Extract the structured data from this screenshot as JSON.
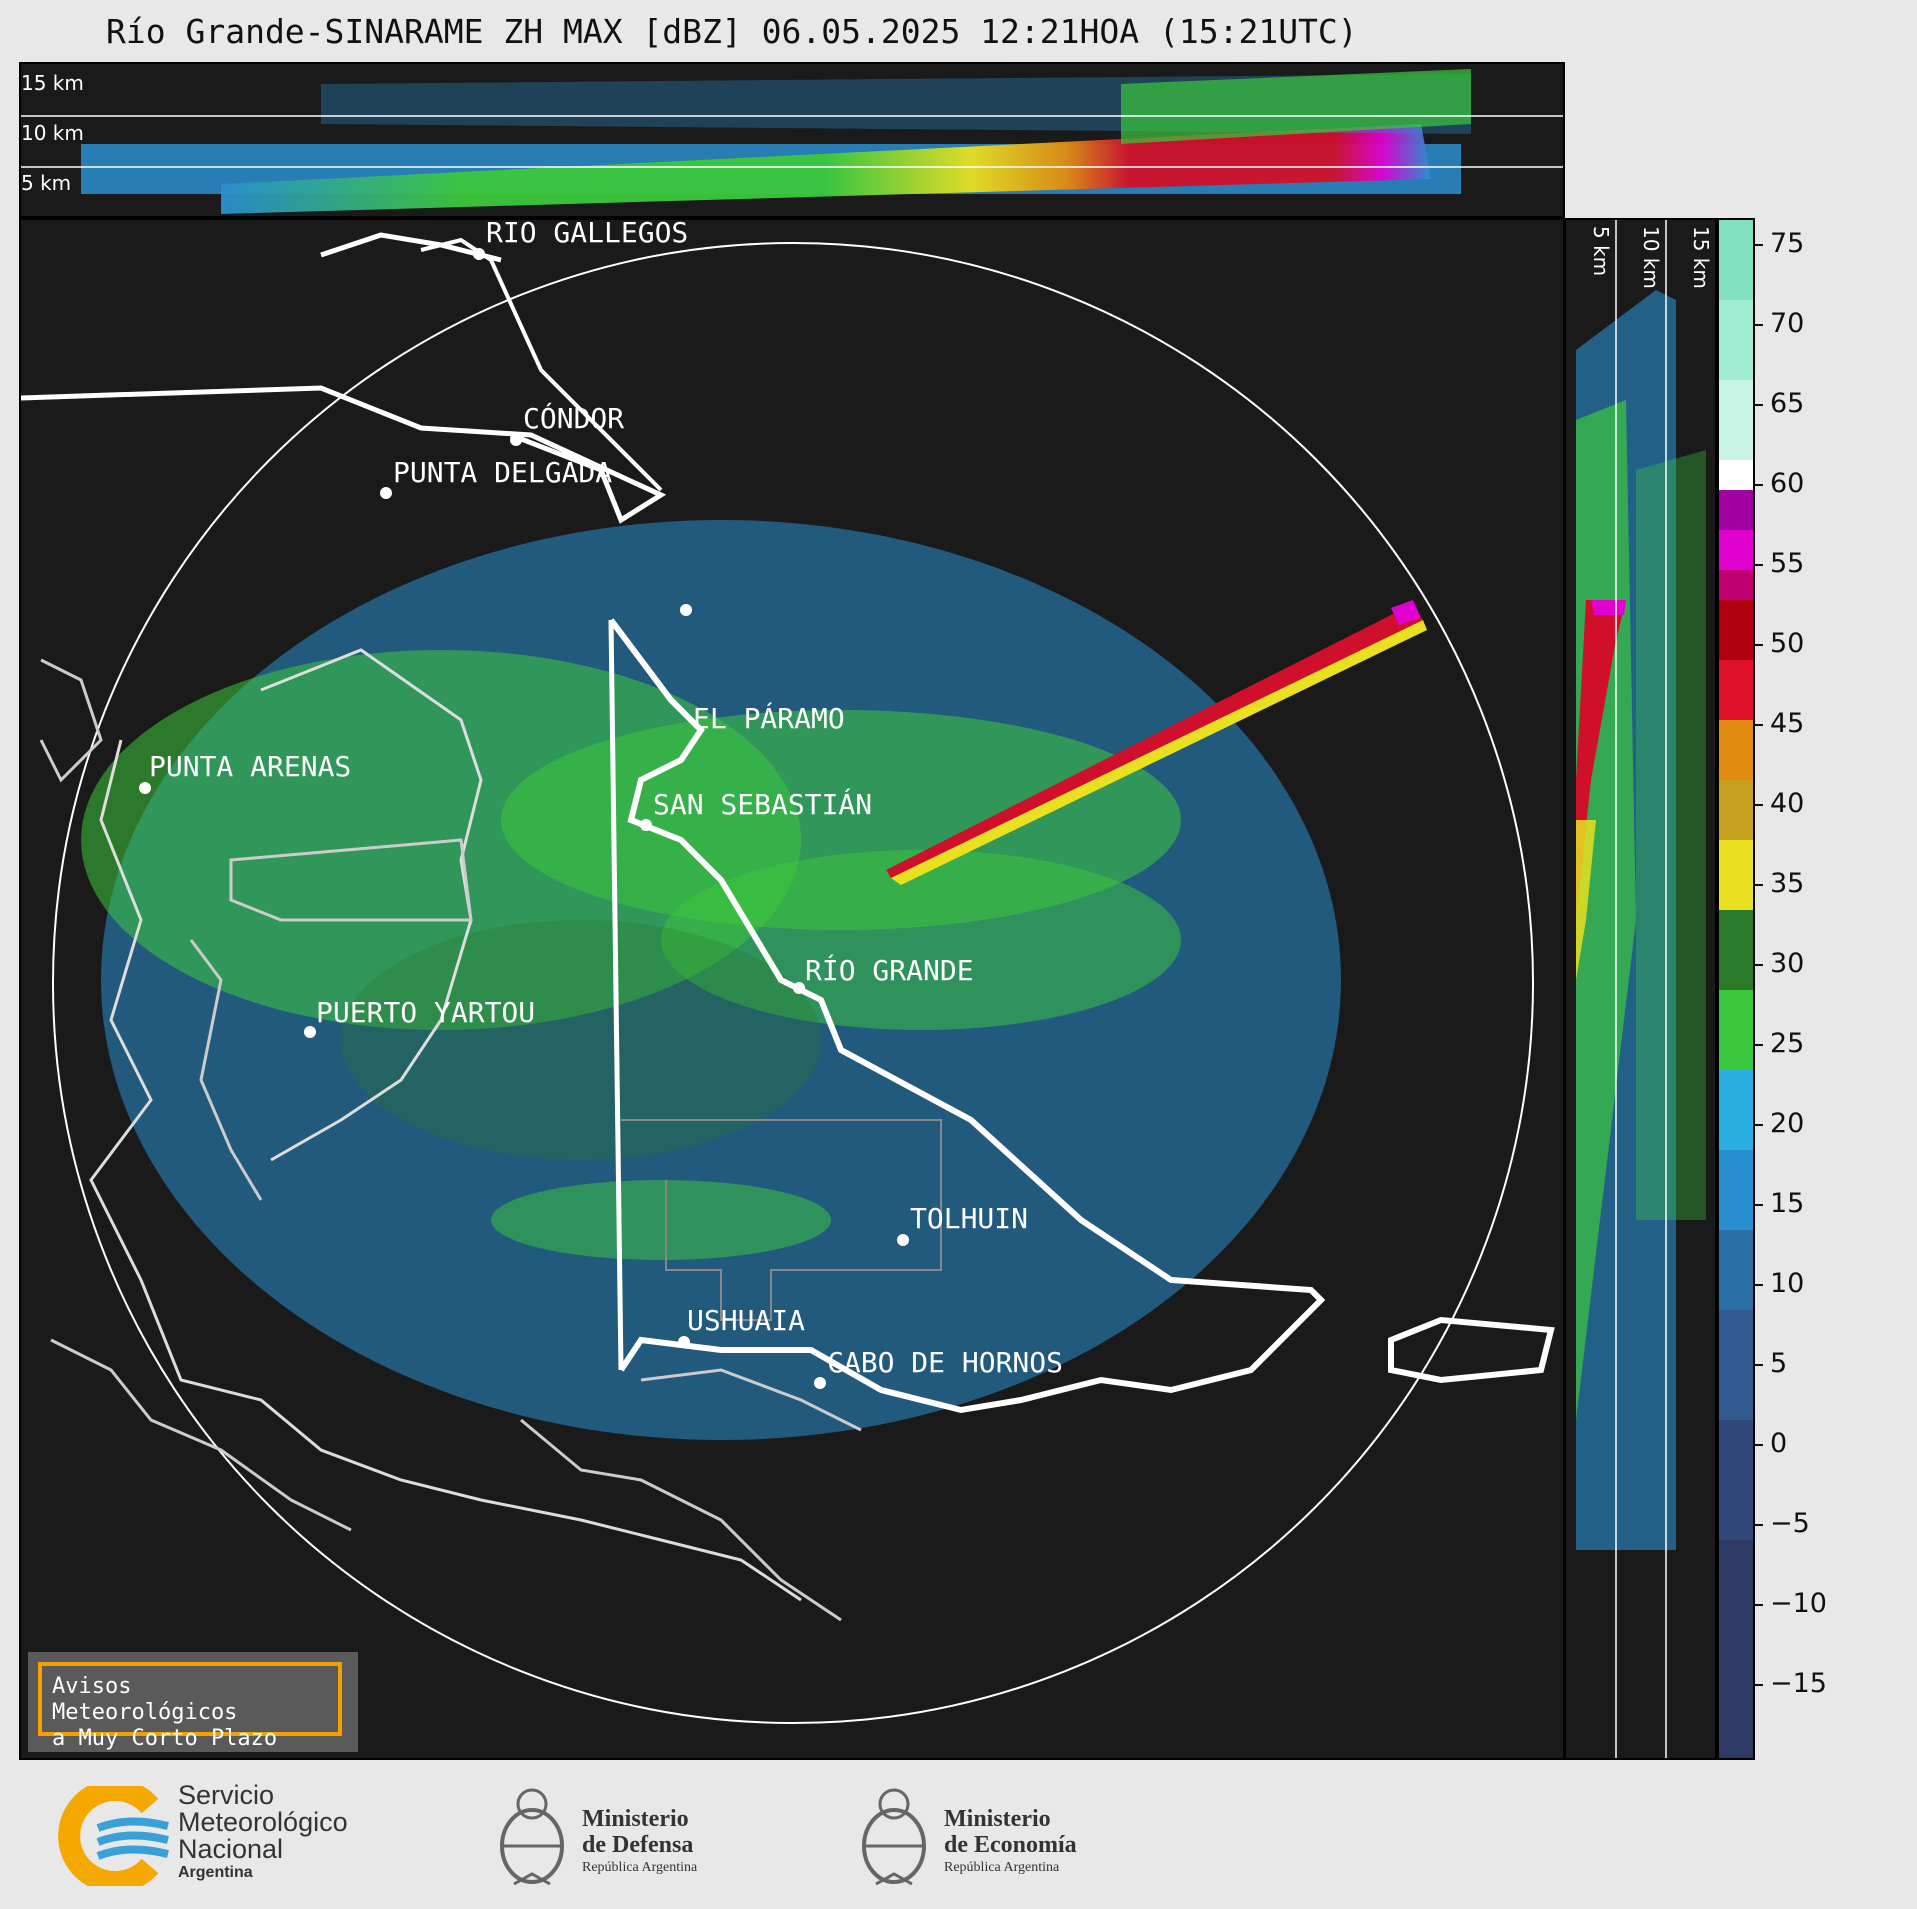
{
  "title": "Río Grande-SINARAME ZH MAX [dBZ] 06.05.2025 12:21HOA (15:21UTC)",
  "top_panel": {
    "km_labels": [
      "15 km",
      "10 km",
      "5 km"
    ]
  },
  "side_panel": {
    "km_labels": [
      "5 km",
      "10 km",
      "15 km"
    ]
  },
  "places": [
    {
      "name": "RÍO GALLEGOS"
    },
    {
      "name": "CÓNDOR"
    },
    {
      "name": "PUNTA DELGADA"
    },
    {
      "name": "EL PÁRAMO"
    },
    {
      "name": "PUNTA ARENAS"
    },
    {
      "name": "SAN SEBASTIÁN"
    },
    {
      "name": "RÍO GRANDE"
    },
    {
      "name": "PUERTO YARTOU"
    },
    {
      "name": "TOLHUIN"
    },
    {
      "name": "USHUAIA"
    },
    {
      "name": "CABO DE HORNOS"
    }
  ],
  "colorbar": {
    "unit": "dBZ",
    "ticks": [
      "75",
      "70",
      "65",
      "60",
      "55",
      "50",
      "45",
      "40",
      "35",
      "30",
      "25",
      "20",
      "15",
      "10",
      "5",
      "0",
      "−5",
      "−10",
      "−15"
    ],
    "colors": {
      "blue": "#2a8fd0",
      "green": "#3cc83c",
      "dark_green": "#2a7a2a",
      "yellow": "#e8e020",
      "orange": "#e08a10",
      "red": "#d0102a",
      "magenta": "#e000d0",
      "aqua": "#80e0c0"
    }
  },
  "aviso": {
    "line1": "Avisos Meteorológicos",
    "line2": "a Muy Corto Plazo"
  },
  "logos": {
    "smn": {
      "line1": "Servicio",
      "line2": "Meteorológico",
      "line3": "Nacional",
      "line4": "Argentina"
    },
    "defensa": {
      "line1": "Ministerio",
      "line2": "de Defensa",
      "line3": "República Argentina"
    },
    "economia": {
      "line1": "Ministerio",
      "line2": "de Economía",
      "line3": "República Argentina"
    }
  }
}
